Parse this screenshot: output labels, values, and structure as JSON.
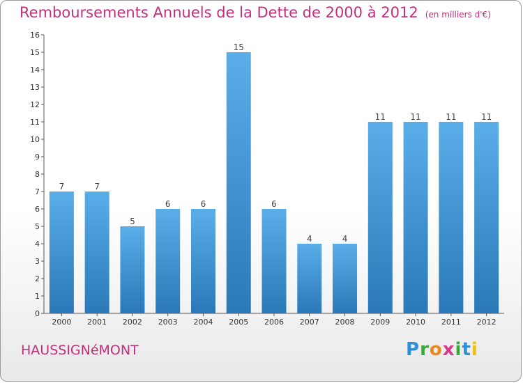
{
  "title": "Remboursements Annuels de la Dette de 2000 à 2012",
  "unit": "(en milliers d'€)",
  "commune": "HAUSSIGNéMONT",
  "logo": "Proxiti",
  "chart_data": {
    "type": "bar",
    "categories": [
      "2000",
      "2001",
      "2002",
      "2003",
      "2004",
      "2005",
      "2006",
      "2007",
      "2008",
      "2009",
      "2010",
      "2011",
      "2012"
    ],
    "values": [
      7,
      7,
      5,
      6,
      6,
      15,
      6,
      4,
      4,
      11,
      11,
      11,
      11
    ],
    "ylim": [
      0,
      16
    ],
    "yticks": [
      0,
      1,
      2,
      3,
      4,
      5,
      6,
      7,
      8,
      9,
      10,
      11,
      12,
      13,
      14,
      15,
      16
    ],
    "grid": false,
    "bar_color_top": "#5aaee8",
    "bar_color_bottom": "#2a78b8"
  }
}
